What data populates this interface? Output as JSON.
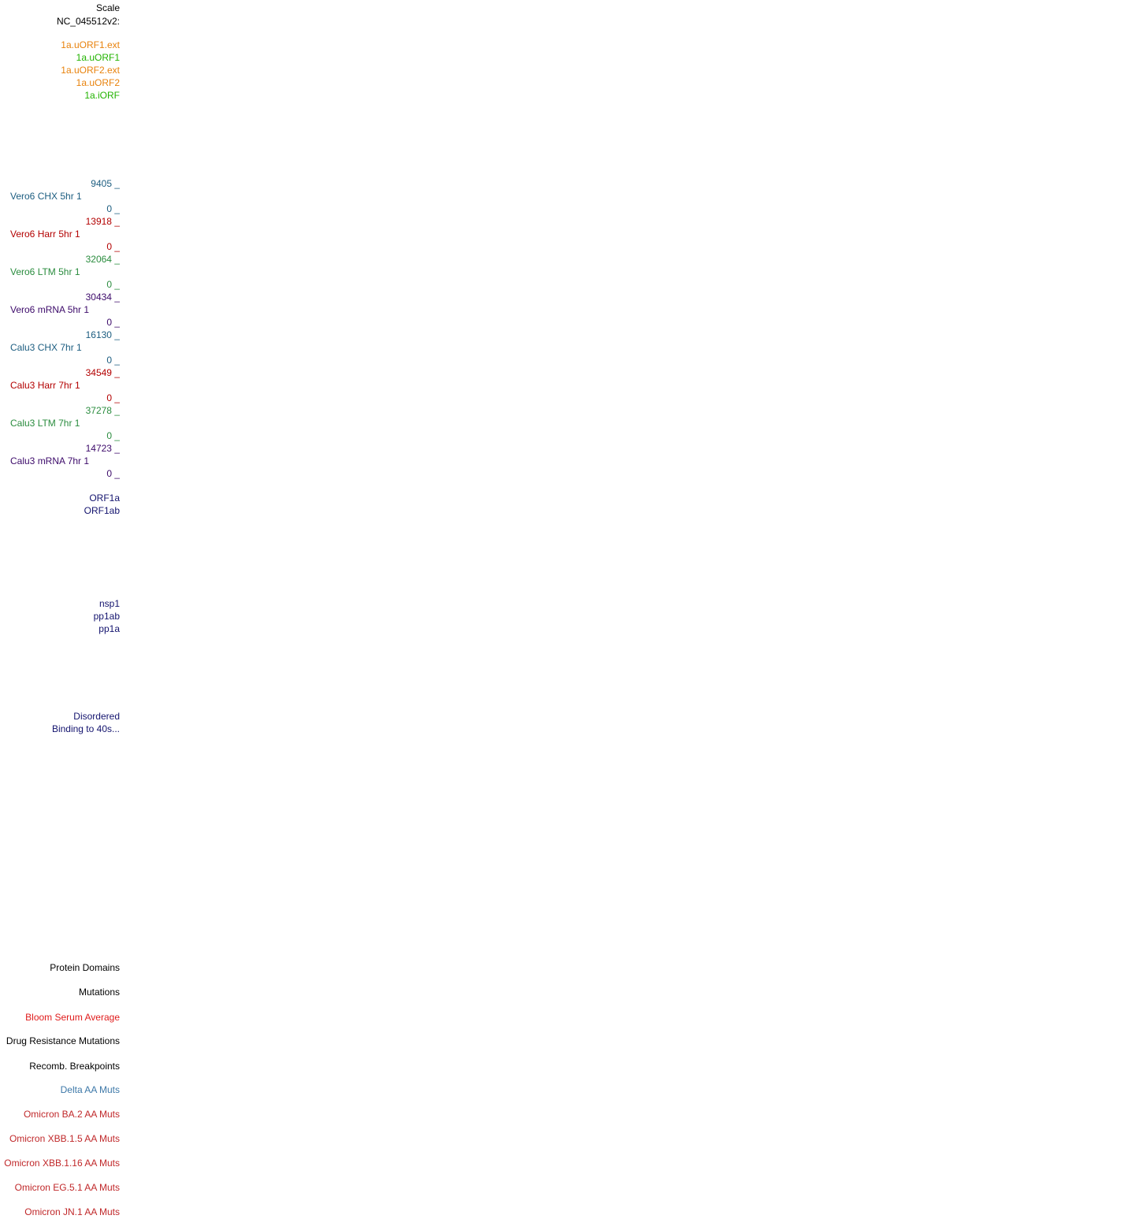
{
  "colors": {
    "black": "#000000",
    "orange": "#e8820c",
    "green": "#22b300",
    "blue": "#1c5d80",
    "red": "#b30000",
    "darkgreen": "#2a8c3e",
    "purple": "#3c0a6a",
    "navy": "#13136e",
    "bright_red": "#e01b1b",
    "steelblue": "#3d78a8",
    "firebrick": "#c0282a"
  },
  "header": {
    "scale": "Scale",
    "assembly": "NC_045512v2:"
  },
  "uorfs": [
    {
      "label": "1a.uORF1.ext",
      "color": "orange"
    },
    {
      "label": "1a.uORF1",
      "color": "green"
    },
    {
      "label": "1a.uORF2.ext",
      "color": "orange"
    },
    {
      "label": "1a.uORF2",
      "color": "orange"
    },
    {
      "label": "1a.iORF",
      "color": "green"
    }
  ],
  "signal_tracks": [
    {
      "max": "9405 _",
      "name": "Vero6 CHX 5hr 1",
      "min": "0 _",
      "color": "blue"
    },
    {
      "max": "13918 _",
      "name": "Vero6 Harr 5hr 1",
      "min": "0 _",
      "color": "red"
    },
    {
      "max": "32064 _",
      "name": "Vero6 LTM 5hr 1",
      "min": "0 _",
      "color": "darkgreen"
    },
    {
      "max": "30434 _",
      "name": "Vero6 mRNA 5hr 1",
      "min": "0 _",
      "color": "purple"
    },
    {
      "max": "16130 _",
      "name": "Calu3 CHX 7hr 1",
      "min": "0 _",
      "color": "blue"
    },
    {
      "max": "34549 _",
      "name": "Calu3 Harr 7hr 1",
      "min": "0 _",
      "color": "red"
    },
    {
      "max": "37278 _",
      "name": "Calu3 LTM 7hr 1",
      "min": "0 _",
      "color": "darkgreen"
    },
    {
      "max": "14723 _",
      "name": "Calu3 mRNA 7hr 1",
      "min": "0 _",
      "color": "purple"
    }
  ],
  "genes": [
    "ORF1a",
    "ORF1ab"
  ],
  "proteins": [
    "nsp1",
    "pp1ab",
    "pp1a"
  ],
  "regions": [
    "Disordered",
    "Binding to 40s..."
  ],
  "bottom_tracks": [
    {
      "label": "Protein Domains",
      "color": "black"
    },
    {
      "label": "Mutations",
      "color": "black"
    },
    {
      "label": "Bloom Serum Average",
      "color": "bright_red"
    },
    {
      "label": "Drug Resistance Mutations",
      "color": "black"
    },
    {
      "label": "Recomb. Breakpoints",
      "color": "black"
    },
    {
      "label": "Delta AA Muts",
      "color": "steelblue"
    },
    {
      "label": "Omicron BA.2 AA Muts",
      "color": "firebrick"
    },
    {
      "label": "Omicron XBB.1.5 AA Muts",
      "color": "firebrick"
    },
    {
      "label": "Omicron XBB.1.16 AA Muts",
      "color": "firebrick"
    },
    {
      "label": "Omicron EG.5.1 AA Muts",
      "color": "firebrick"
    },
    {
      "label": "Omicron JN.1 AA Muts",
      "color": "firebrick"
    }
  ]
}
